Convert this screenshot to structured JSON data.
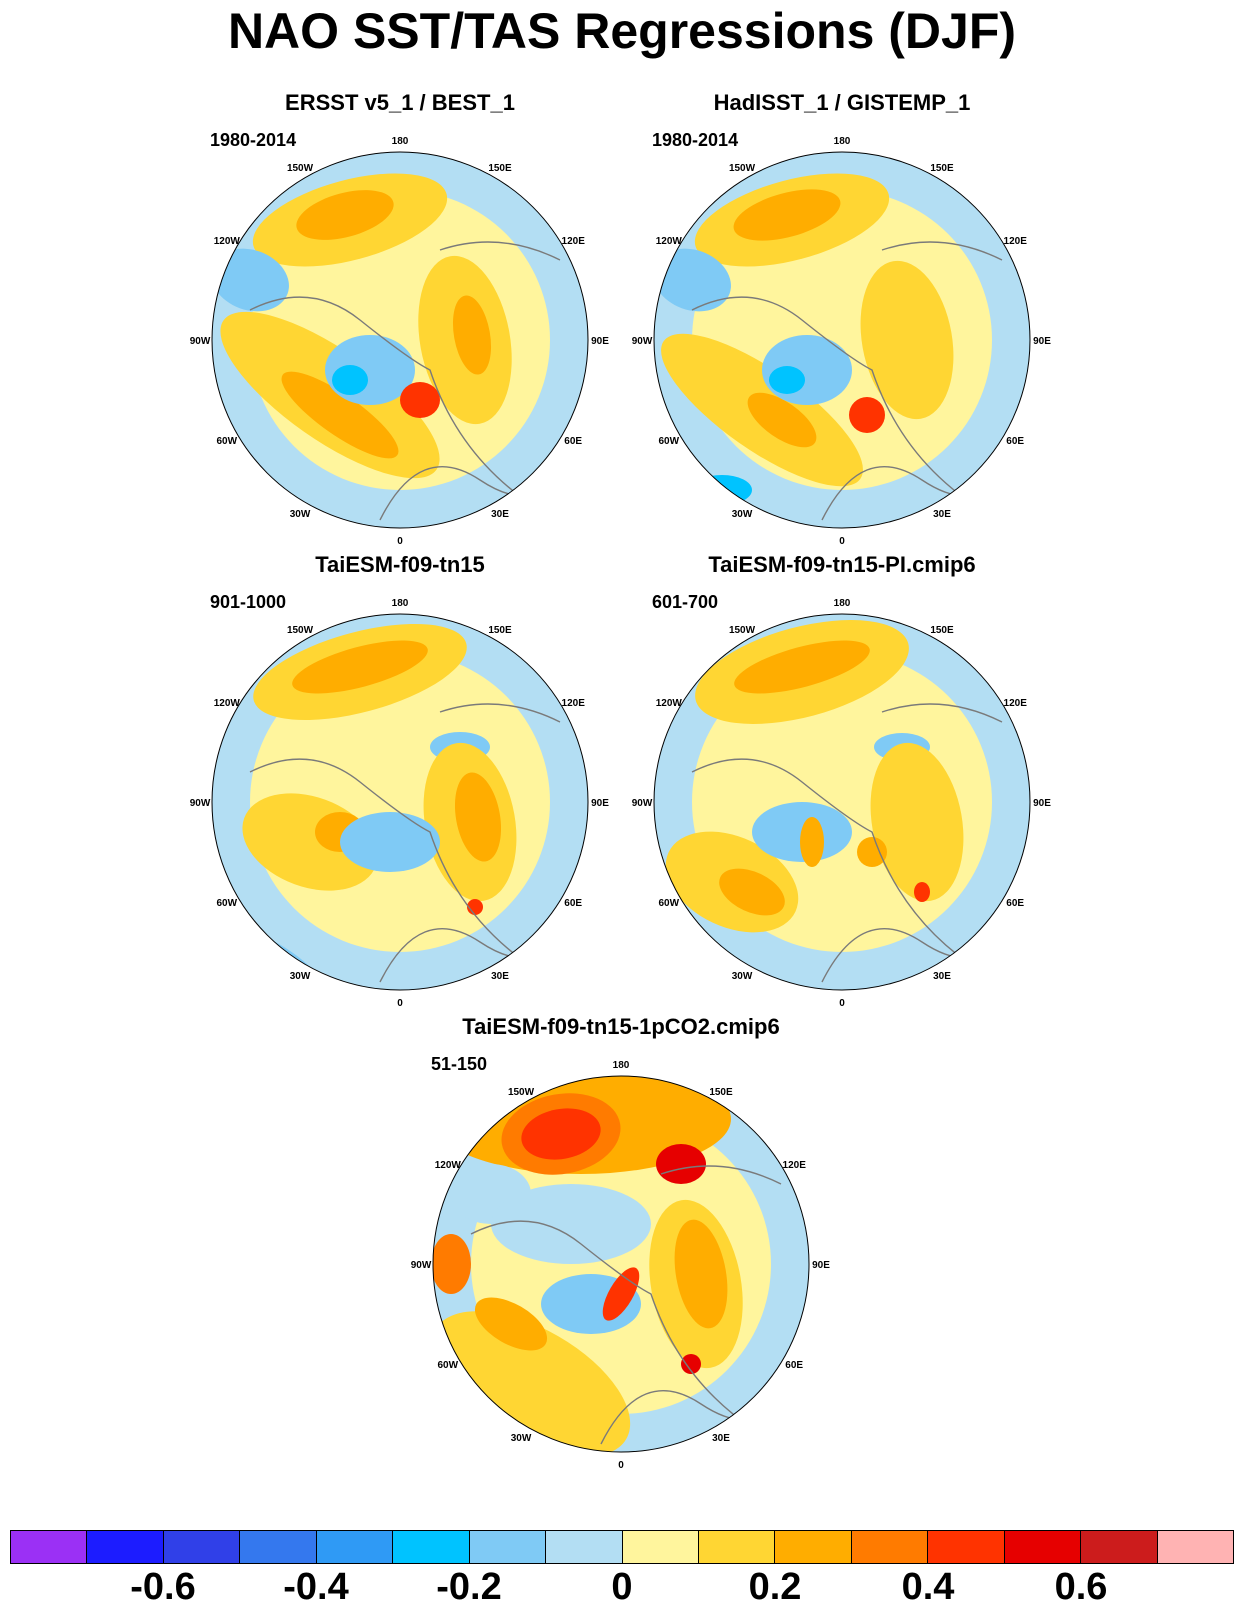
{
  "title": "NAO SST/TAS Regressions (DJF)",
  "lon_labels": [
    "180",
    "150E",
    "120E",
    "90E",
    "60E",
    "30E",
    "0",
    "30W",
    "60W",
    "90W",
    "120W",
    "150W"
  ],
  "panels": [
    {
      "title": "ERSST v5_1 / BEST_1",
      "period": "1980-2014"
    },
    {
      "title": "HadISST_1 / GISTEMP_1",
      "period": "1980-2014"
    },
    {
      "title": "TaiESM-f09-tn15",
      "period": "901-1000"
    },
    {
      "title": "TaiESM-f09-tn15-PI.cmip6",
      "period": "601-700"
    },
    {
      "title": "TaiESM-f09-tn15-1pCO2.cmip6",
      "period": "51-150"
    }
  ],
  "colorbar": {
    "colors": [
      "#9b30f5",
      "#1c1cff",
      "#3040e8",
      "#3478ee",
      "#2f9af5",
      "#00c3ff",
      "#7fcaf5",
      "#b3def3",
      "#fff59d",
      "#ffd633",
      "#ffad00",
      "#ff7b00",
      "#ff3300",
      "#e60000",
      "#cc1c1c",
      "#ffb3b3"
    ],
    "labels": [
      "-0.6",
      "-0.4",
      "-0.2",
      "0",
      "0.2",
      "0.4",
      "0.6"
    ]
  }
}
